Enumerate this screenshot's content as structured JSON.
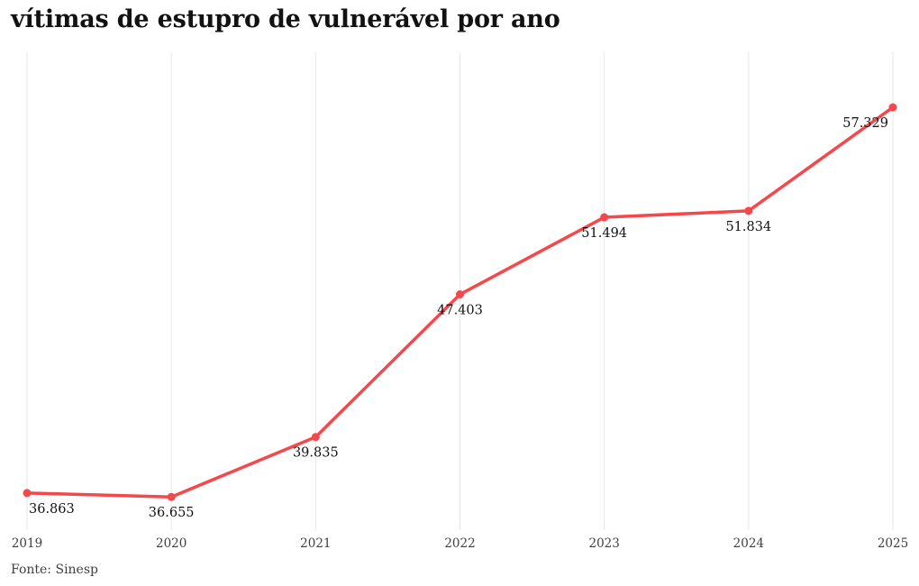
{
  "chart_data": {
    "type": "line",
    "title": "vítimas de estupro de vulnerável por ano",
    "categories": [
      "2019",
      "2020",
      "2021",
      "2022",
      "2023",
      "2024",
      "2025"
    ],
    "values": [
      36863,
      36655,
      39835,
      47403,
      51494,
      51834,
      57329
    ],
    "value_labels": [
      "36.863",
      "36.655",
      "39.835",
      "47.403",
      "51.494",
      "51.834",
      "57.329"
    ],
    "ylim": [
      34800,
      60250
    ],
    "grid": "vertical-only",
    "legend": "none",
    "line_color": "#F4484C",
    "marker_color": "#F4484C",
    "gridline_color": "#e7e7e7",
    "data_label_color": "#121212",
    "axis_label_color": "#3f3f3f",
    "xlabel": "",
    "ylabel": ""
  },
  "footer": {
    "source": "Fonte: Sinesp"
  }
}
